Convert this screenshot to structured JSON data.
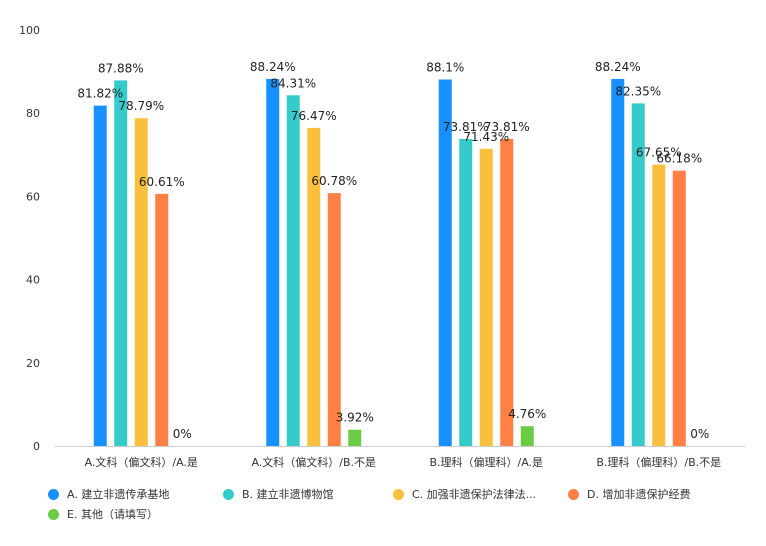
{
  "chart_data": {
    "type": "bar",
    "categories": [
      "A.文科（偏文科）/A.是",
      "A.文科（偏文科）/B.不是",
      "B.理科（偏理科）/A.是",
      "B.理科（偏理科）/B.不是"
    ],
    "series": [
      {
        "name": "A. 建立非遗传承基地",
        "color": "#1890FF",
        "values": [
          81.82,
          88.24,
          88.1,
          88.24
        ],
        "labels": [
          "81.82%",
          "88.24%",
          "88.1%",
          "88.24%"
        ]
      },
      {
        "name": "B. 建立非遗博物馆",
        "color": "#36CBCB",
        "values": [
          87.88,
          84.31,
          73.81,
          82.35
        ],
        "labels": [
          "87.88%",
          "84.31%",
          "73.81%",
          "82.35%"
        ]
      },
      {
        "name": "C. 加强非遗保护法律法...",
        "color": "#FAC03D",
        "values": [
          78.79,
          76.47,
          71.43,
          67.65
        ],
        "labels": [
          "78.79%",
          "76.47%",
          "71.43%",
          "67.65%"
        ]
      },
      {
        "name": "D. 增加非遗保护经费",
        "color": "#FF7F45",
        "values": [
          60.61,
          60.78,
          73.81,
          66.18
        ],
        "labels": [
          "60.61%",
          "60.78%",
          "73.81%",
          "66.18%"
        ]
      },
      {
        "name": "E. 其他（请填写）",
        "color": "#6CCB45",
        "values": [
          0,
          3.92,
          4.76,
          0
        ],
        "labels": [
          "0%",
          "3.92%",
          "4.76%",
          "0%"
        ]
      }
    ],
    "ylim": [
      0,
      100
    ],
    "yticks": [
      "0",
      "20",
      "40",
      "60",
      "80",
      "100"
    ],
    "grid": false,
    "legend_position": "bottom"
  }
}
